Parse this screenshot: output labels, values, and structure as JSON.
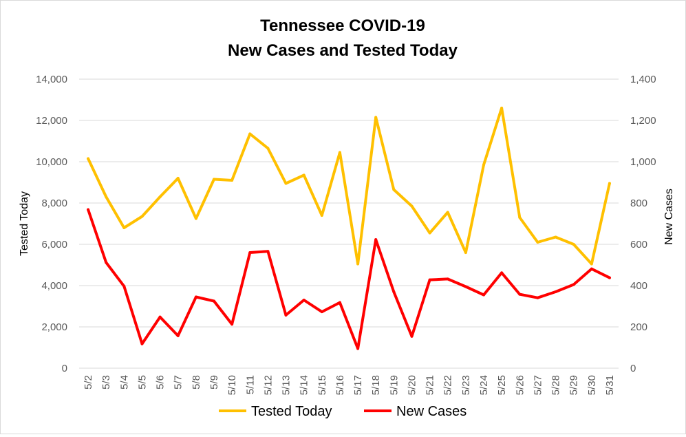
{
  "chart_data": {
    "type": "line",
    "title_lines": [
      "Tennessee COVID-19",
      "New Cases and Tested Today"
    ],
    "categories": [
      "5/2",
      "5/3",
      "5/4",
      "5/5",
      "5/6",
      "5/7",
      "5/8",
      "5/9",
      "5/10",
      "5/11",
      "5/12",
      "5/13",
      "5/14",
      "5/15",
      "5/16",
      "5/17",
      "5/18",
      "5/19",
      "5/20",
      "5/21",
      "5/22",
      "5/23",
      "5/24",
      "5/25",
      "5/26",
      "5/27",
      "5/28",
      "5/29",
      "5/30",
      "5/31"
    ],
    "y_left": {
      "label": "Tested Today",
      "min": 0,
      "max": 14000,
      "ticks": [
        0,
        2000,
        4000,
        6000,
        8000,
        10000,
        12000,
        14000
      ],
      "tick_labels": [
        "0",
        "2,000",
        "4,000",
        "6,000",
        "8,000",
        "10,000",
        "12,000",
        "14,000"
      ]
    },
    "y_right": {
      "label": "New Cases",
      "min": 0,
      "max": 1400,
      "ticks": [
        0,
        200,
        400,
        600,
        800,
        1000,
        1200,
        1400
      ],
      "tick_labels": [
        "0",
        "200",
        "400",
        "600",
        "800",
        "1,000",
        "1,200",
        "1,400"
      ]
    },
    "gridlines": true,
    "legend_position": "bottom",
    "series": [
      {
        "name": "Tested Today",
        "axis": "left",
        "color": "#FFC000",
        "values": [
          10150,
          8300,
          6800,
          7350,
          8300,
          9200,
          7250,
          9150,
          9100,
          11350,
          10650,
          8950,
          9350,
          7400,
          10450,
          5050,
          12150,
          8650,
          7850,
          6550,
          7550,
          5600,
          9850,
          12600,
          7300,
          6100,
          6350,
          6000,
          5050,
          8950
        ]
      },
      {
        "name": "New Cases",
        "axis": "right",
        "color": "#FF0000",
        "values": [
          768,
          512,
          397,
          118,
          248,
          157,
          345,
          325,
          213,
          560,
          566,
          257,
          330,
          273,
          318,
          95,
          623,
          370,
          154,
          428,
          432,
          395,
          355,
          462,
          358,
          341,
          370,
          405,
          481,
          438
        ]
      }
    ]
  }
}
